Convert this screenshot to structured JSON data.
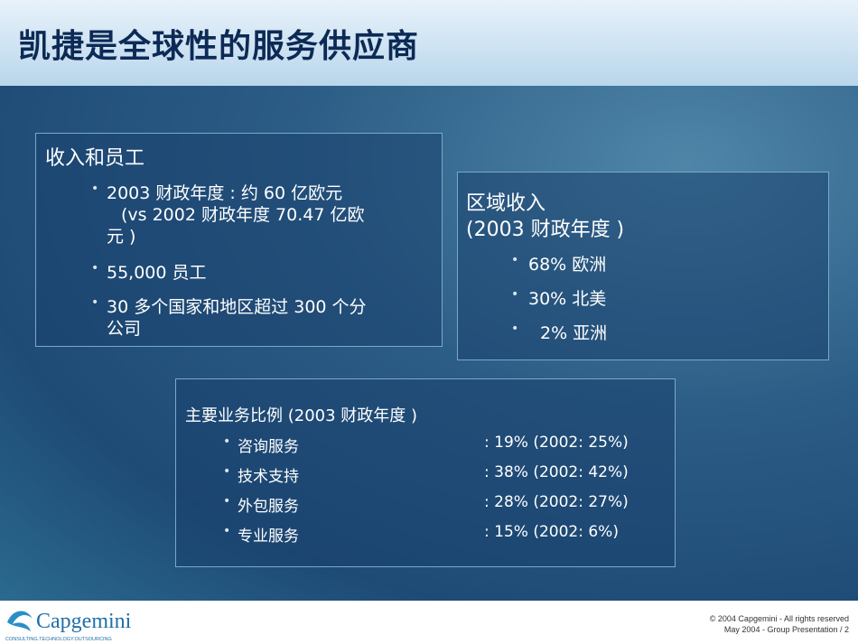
{
  "header": {
    "title": "凯捷是全球性的服务供应商"
  },
  "revenue_staff": {
    "heading": "收入和员工",
    "bullets": [
      [
        "2003 财政年度 :  约 60 亿欧元",
        "(vs 2002 财政年度   70.47 亿欧",
        "元 )"
      ],
      [
        "55,000  员工"
      ],
      [
        "30 多个国家和地区超过 300 个分",
        "公司"
      ]
    ]
  },
  "regional": {
    "heading": [
      "区域收入",
      "(2003 财政年度 )"
    ],
    "bullets": [
      "68%  欧洲",
      "30%  北美",
      "2%  亚洲"
    ]
  },
  "business": {
    "heading": "主要业务比例   (2003 财政年度 )",
    "rows": [
      {
        "label": "咨询服务",
        "value": ": 19% (2002: 25%)"
      },
      {
        "label": "技术支持",
        "value": ": 38% (2002: 42%)"
      },
      {
        "label": "外包服务",
        "value": ": 28% (2002: 27%)"
      },
      {
        "label": "专业服务",
        "value": ": 15% (2002: 6%)"
      }
    ]
  },
  "footer": {
    "logo": "Capgemini",
    "tagline": "CONSULTING.TECHNOLOGY.OUTSOURCING",
    "copyright": [
      "© 2004 Capgemini - All rights reserved",
      "May 2004 - Group Presentation / 2"
    ]
  }
}
